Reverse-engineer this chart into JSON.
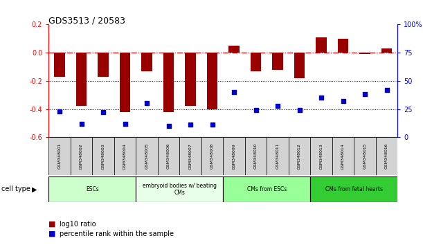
{
  "title": "GDS3513 / 20583",
  "samples": [
    "GSM348001",
    "GSM348002",
    "GSM348003",
    "GSM348004",
    "GSM348005",
    "GSM348006",
    "GSM348007",
    "GSM348008",
    "GSM348009",
    "GSM348010",
    "GSM348011",
    "GSM348012",
    "GSM348013",
    "GSM348014",
    "GSM348015",
    "GSM348016"
  ],
  "log10_ratio": [
    -0.17,
    -0.38,
    -0.17,
    -0.42,
    -0.13,
    -0.42,
    -0.38,
    -0.4,
    0.05,
    -0.13,
    -0.12,
    -0.18,
    0.11,
    0.1,
    -0.01,
    0.03
  ],
  "percentile_rank": [
    23,
    12,
    22,
    12,
    30,
    10,
    11,
    11,
    40,
    24,
    28,
    24,
    35,
    32,
    38,
    42
  ],
  "cell_type_groups": [
    {
      "label": "ESCs",
      "start": 0,
      "end": 3,
      "color": "#ccffcc"
    },
    {
      "label": "embryoid bodies w/ beating\nCMs",
      "start": 4,
      "end": 7,
      "color": "#e8ffe8"
    },
    {
      "label": "CMs from ESCs",
      "start": 8,
      "end": 11,
      "color": "#99ff99"
    },
    {
      "label": "CMs from fetal hearts",
      "start": 12,
      "end": 15,
      "color": "#33cc33"
    }
  ],
  "bar_color": "#990000",
  "dot_color": "#0000cc",
  "hline_color": "#cc0000",
  "dotline_color": "#000000",
  "ylim_left": [
    -0.6,
    0.2
  ],
  "ylim_right": [
    0,
    100
  ],
  "yticks_left": [
    -0.6,
    -0.4,
    -0.2,
    0.0,
    0.2
  ],
  "yticks_right": [
    0,
    25,
    50,
    75,
    100
  ],
  "ytick_labels_right": [
    "0",
    "25",
    "50",
    "75",
    "100%"
  ],
  "background_color": "#ffffff"
}
